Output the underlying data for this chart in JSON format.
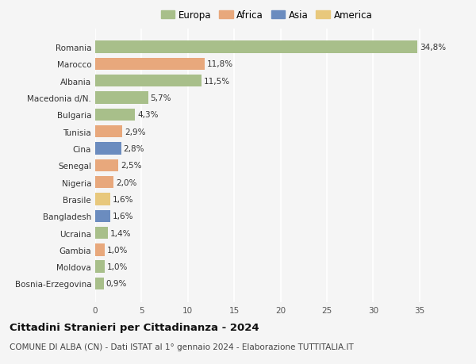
{
  "categories": [
    "Romania",
    "Marocco",
    "Albania",
    "Macedonia d/N.",
    "Bulgaria",
    "Tunisia",
    "Cina",
    "Senegal",
    "Nigeria",
    "Brasile",
    "Bangladesh",
    "Ucraina",
    "Gambia",
    "Moldova",
    "Bosnia-Erzegovina"
  ],
  "values": [
    34.8,
    11.8,
    11.5,
    5.7,
    4.3,
    2.9,
    2.8,
    2.5,
    2.0,
    1.6,
    1.6,
    1.4,
    1.0,
    1.0,
    0.9
  ],
  "labels": [
    "34,8%",
    "11,8%",
    "11,5%",
    "5,7%",
    "4,3%",
    "2,9%",
    "2,8%",
    "2,5%",
    "2,0%",
    "1,6%",
    "1,6%",
    "1,4%",
    "1,0%",
    "1,0%",
    "0,9%"
  ],
  "continents": [
    "Europa",
    "Africa",
    "Europa",
    "Europa",
    "Europa",
    "Africa",
    "Asia",
    "Africa",
    "Africa",
    "America",
    "Asia",
    "Europa",
    "Africa",
    "Europa",
    "Europa"
  ],
  "colors": {
    "Europa": "#a8bf8a",
    "Africa": "#e8a87c",
    "Asia": "#6b8cbf",
    "America": "#e8c87c"
  },
  "legend_order": [
    "Europa",
    "Africa",
    "Asia",
    "America"
  ],
  "xlim": [
    0,
    37
  ],
  "xticks": [
    0,
    5,
    10,
    15,
    20,
    25,
    30,
    35
  ],
  "title": "Cittadini Stranieri per Cittadinanza - 2024",
  "subtitle": "COMUNE DI ALBA (CN) - Dati ISTAT al 1° gennaio 2024 - Elaborazione TUTTITALIA.IT",
  "background_color": "#f5f5f5",
  "grid_color": "#ffffff",
  "bar_height": 0.72,
  "label_fontsize": 7.5,
  "tick_fontsize": 7.5,
  "title_fontsize": 9.5,
  "subtitle_fontsize": 7.5,
  "legend_fontsize": 8.5
}
